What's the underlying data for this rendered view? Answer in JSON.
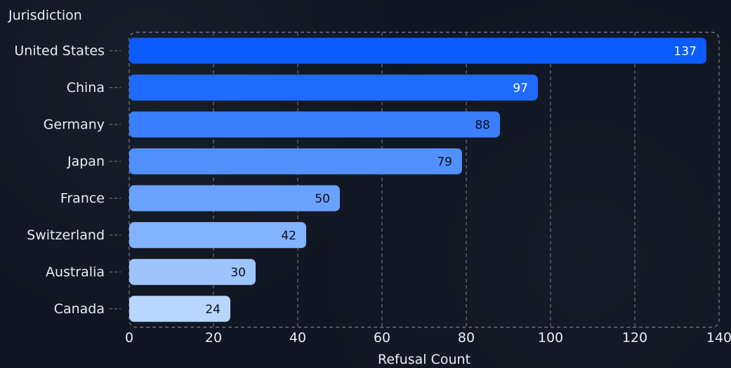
{
  "chart_data": {
    "type": "bar",
    "orientation": "horizontal",
    "ylabel": "Jurisdiction",
    "xlabel": "Refusal Count",
    "categories": [
      "United States",
      "China",
      "Germany",
      "Japan",
      "France",
      "Switzerland",
      "Australia",
      "Canada"
    ],
    "values": [
      137,
      97,
      88,
      79,
      50,
      42,
      30,
      24
    ],
    "xlim": [
      0,
      140
    ],
    "x_ticks": [
      0,
      20,
      40,
      60,
      80,
      100,
      120,
      140
    ],
    "grid": true,
    "legend": "none",
    "colors": {
      "background": "#111722",
      "bars": [
        "#0a5cff",
        "#1f6bff",
        "#3a7fff",
        "#5090ff",
        "#6aa2ff",
        "#82b3ff",
        "#9cc4ff",
        "#b8d6ff"
      ],
      "grid": "#7a808c",
      "text": "#e8ecf4",
      "value_label_dark": "#0b0f17",
      "value_label_light": "#ffffff"
    }
  }
}
